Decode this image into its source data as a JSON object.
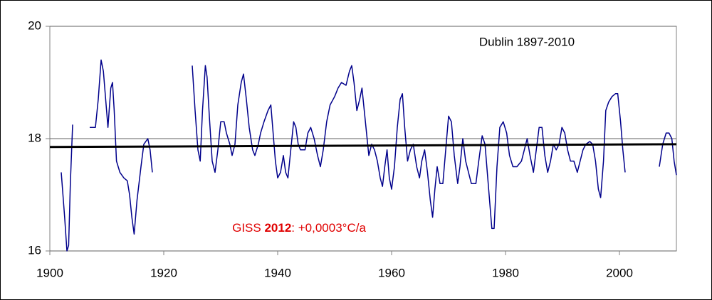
{
  "chart_data": {
    "type": "line",
    "title": "Dublin 1897-2010",
    "annotation": {
      "parts": [
        "GISS ",
        "2012",
        ": +0,0003°C/a"
      ],
      "color": "#e00000"
    },
    "xlim": [
      1900,
      2010
    ],
    "xticks": [
      1900,
      1920,
      1940,
      1960,
      1980,
      2000
    ],
    "ylim": [
      16,
      20
    ],
    "yticks": [
      16,
      18,
      20
    ],
    "grid": true,
    "trend": {
      "x": [
        1900,
        2010
      ],
      "values": [
        17.85,
        17.9
      ],
      "color": "#000000"
    },
    "series": [
      {
        "name": "Dublin",
        "color": "#00008b",
        "x": [
          1902,
          1902.3,
          1902.6,
          1903,
          1903.3,
          1903.6,
          1904,
          1905,
          1907,
          1908,
          1908.5,
          1909,
          1909.4,
          1909.8,
          1910.2,
          1910.7,
          1911,
          1911.3,
          1911.7,
          1912.3,
          1913,
          1913.6,
          1914,
          1914.4,
          1914.8,
          1915.3,
          1916,
          1916.5,
          1917.2,
          1917.6,
          1918,
          1921,
          1925,
          1925.5,
          1926,
          1926.4,
          1926.8,
          1927.3,
          1927.6,
          1928,
          1928.5,
          1929,
          1929.5,
          1930,
          1930.6,
          1931,
          1931.6,
          1932,
          1932.5,
          1933,
          1933.6,
          1934,
          1934.5,
          1935,
          1935.6,
          1936,
          1936.6,
          1937,
          1937.6,
          1938.3,
          1938.8,
          1939.2,
          1939.6,
          1940,
          1940.5,
          1941,
          1941.4,
          1941.8,
          1942.3,
          1942.8,
          1943.2,
          1943.6,
          1944,
          1944.8,
          1945.3,
          1945.8,
          1946.4,
          1947,
          1947.5,
          1948,
          1948.6,
          1949.2,
          1950,
          1950.6,
          1951.2,
          1952,
          1952.6,
          1953,
          1953.4,
          1953.9,
          1954.4,
          1954.8,
          1955.2,
          1955.7,
          1956,
          1956.5,
          1957,
          1957.5,
          1958,
          1958.4,
          1958.8,
          1959.2,
          1959.6,
          1960,
          1960.5,
          1961,
          1961.5,
          1961.9,
          1962.3,
          1962.8,
          1963.3,
          1963.8,
          1964.4,
          1964.9,
          1965.3,
          1965.8,
          1966.3,
          1966.8,
          1967.2,
          1967.6,
          1968,
          1968.5,
          1969,
          1969.5,
          1970,
          1970.5,
          1971,
          1971.6,
          1972,
          1972.5,
          1973,
          1973.5,
          1974,
          1974.8,
          1975.3,
          1975.9,
          1976.4,
          1976.8,
          1977.2,
          1977.6,
          1978,
          1978.5,
          1979,
          1979.6,
          1980.2,
          1980.7,
          1981.3,
          1982,
          1982.8,
          1983.3,
          1983.8,
          1984.3,
          1984.9,
          1985.4,
          1985.9,
          1986.4,
          1986.9,
          1987.4,
          1987.9,
          1988.4,
          1988.9,
          1989.4,
          1989.9,
          1990.4,
          1990.9,
          1991.4,
          1992,
          1992.6,
          1993.1,
          1993.6,
          1994.1,
          1994.8,
          1995.3,
          1995.8,
          1996.3,
          1996.7,
          1997.2,
          1997.6,
          1998.1,
          1998.7,
          1999.3,
          1999.7,
          2000.2,
          2000.6,
          2001,
          2004,
          2007,
          2007.6,
          2008.2,
          2008.7,
          2009.2,
          2009.6,
          2010
        ],
        "values": [
          17.4,
          17.0,
          16.6,
          16.0,
          16.1,
          17.2,
          18.25,
          null,
          18.2,
          18.2,
          18.7,
          19.4,
          19.2,
          18.7,
          18.2,
          18.9,
          19.0,
          18.5,
          17.6,
          17.4,
          17.3,
          17.25,
          17.0,
          16.6,
          16.3,
          16.9,
          17.5,
          17.9,
          18.0,
          17.8,
          17.4,
          null,
          19.3,
          18.5,
          17.8,
          17.6,
          18.5,
          19.3,
          19.1,
          18.4,
          17.6,
          17.4,
          17.8,
          18.3,
          18.3,
          18.1,
          17.9,
          17.7,
          17.9,
          18.6,
          19.0,
          19.15,
          18.7,
          18.2,
          17.8,
          17.7,
          17.9,
          18.1,
          18.3,
          18.5,
          18.6,
          18.1,
          17.6,
          17.3,
          17.4,
          17.7,
          17.4,
          17.3,
          17.8,
          18.3,
          18.2,
          17.9,
          17.8,
          17.8,
          18.1,
          18.2,
          18.0,
          17.7,
          17.5,
          17.8,
          18.3,
          18.6,
          18.75,
          18.9,
          19.0,
          18.95,
          19.2,
          19.3,
          19.0,
          18.5,
          18.7,
          18.9,
          18.5,
          18.0,
          17.7,
          17.9,
          17.8,
          17.6,
          17.3,
          17.15,
          17.5,
          17.8,
          17.3,
          17.1,
          17.5,
          18.2,
          18.7,
          18.8,
          18.2,
          17.6,
          17.8,
          17.9,
          17.5,
          17.3,
          17.6,
          17.8,
          17.4,
          16.9,
          16.6,
          17.1,
          17.5,
          17.2,
          17.2,
          17.8,
          18.4,
          18.3,
          17.7,
          17.2,
          17.5,
          18.0,
          17.6,
          17.4,
          17.2,
          17.2,
          17.6,
          18.05,
          17.9,
          17.4,
          16.9,
          16.4,
          16.4,
          17.5,
          18.2,
          18.3,
          18.1,
          17.7,
          17.5,
          17.5,
          17.6,
          17.8,
          18.0,
          17.7,
          17.4,
          17.8,
          18.2,
          18.2,
          17.7,
          17.4,
          17.6,
          17.9,
          17.8,
          17.9,
          18.2,
          18.1,
          17.8,
          17.6,
          17.6,
          17.4,
          17.6,
          17.8,
          17.9,
          17.95,
          17.9,
          17.6,
          17.1,
          16.95,
          17.6,
          18.5,
          18.65,
          18.75,
          18.8,
          18.8,
          18.3,
          17.8,
          17.4,
          null,
          17.5,
          17.9,
          18.1,
          18.1,
          18.0,
          17.6,
          17.35
        ]
      }
    ]
  }
}
